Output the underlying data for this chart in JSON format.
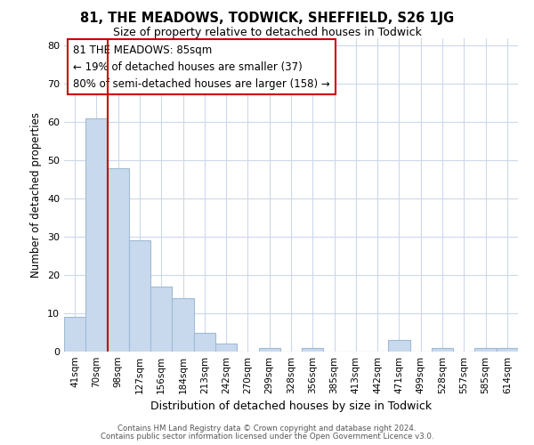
{
  "title1": "81, THE MEADOWS, TODWICK, SHEFFIELD, S26 1JG",
  "title2": "Size of property relative to detached houses in Todwick",
  "xlabel": "Distribution of detached houses by size in Todwick",
  "ylabel": "Number of detached properties",
  "bar_labels": [
    "41sqm",
    "70sqm",
    "98sqm",
    "127sqm",
    "156sqm",
    "184sqm",
    "213sqm",
    "242sqm",
    "270sqm",
    "299sqm",
    "328sqm",
    "356sqm",
    "385sqm",
    "413sqm",
    "442sqm",
    "471sqm",
    "499sqm",
    "528sqm",
    "557sqm",
    "585sqm",
    "614sqm"
  ],
  "bar_values": [
    9,
    61,
    48,
    29,
    17,
    14,
    5,
    2,
    0,
    1,
    0,
    1,
    0,
    0,
    0,
    3,
    0,
    1,
    0,
    1,
    1
  ],
  "bar_color": "#c8d9ed",
  "bar_edge_color": "#a0bad4",
  "vline_color": "#cc0000",
  "ylim": [
    0,
    82
  ],
  "yticks": [
    0,
    10,
    20,
    30,
    40,
    50,
    60,
    70,
    80
  ],
  "annotation_text": "81 THE MEADOWS: 85sqm\n← 19% of detached houses are smaller (37)\n80% of semi-detached houses are larger (158) →",
  "annotation_box_color": "#ffffff",
  "annotation_box_edge": "#cc0000",
  "footer1": "Contains HM Land Registry data © Crown copyright and database right 2024.",
  "footer2": "Contains public sector information licensed under the Open Government Licence v3.0.",
  "background_color": "#ffffff",
  "grid_color": "#cdd8ea"
}
